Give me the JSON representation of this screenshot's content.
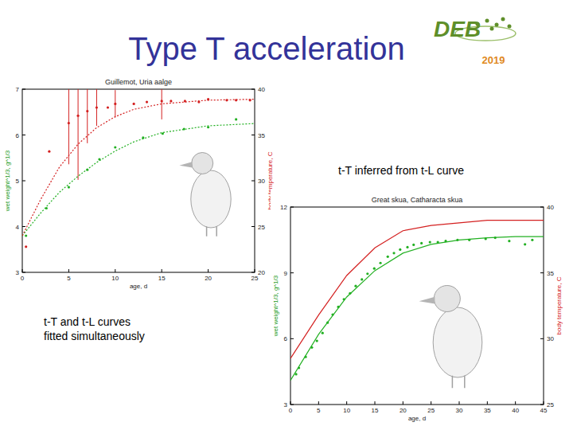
{
  "slide": {
    "title": "Type T acceleration",
    "logo": "DEB",
    "year": "2019",
    "annotations": [
      {
        "lines": [
          "t-T inferred from  t-L curve"
        ]
      },
      {
        "lines": [
          "t-T and t-L curves",
          "fitted simultaneously"
        ]
      }
    ]
  },
  "chart_data": [
    {
      "type": "line",
      "title": "Guillemot, Uria aalge",
      "x_label": "age, d",
      "y_label": "wet weight^1/3, g^1/3",
      "y2_label": "body temperature, C",
      "xlim": [
        0,
        25
      ],
      "xticks": [
        0,
        5,
        10,
        15,
        20,
        25
      ],
      "ylim": [
        3,
        7
      ],
      "yticks": [
        3,
        4,
        5,
        6,
        7
      ],
      "y2lim": [
        20,
        40
      ],
      "y2ticks": [
        20,
        25,
        30,
        35,
        40
      ],
      "series": [
        {
          "type": "scatter",
          "color": "#22b022",
          "marker": "dot",
          "x": [
            0.4,
            2.6,
            5,
            7,
            8.3,
            10,
            13,
            15.1,
            17.4,
            20,
            23
          ],
          "values": [
            3.8,
            4.4,
            4.86,
            5.24,
            5.47,
            5.73,
            5.94,
            6.03,
            6.13,
            6.17,
            6.34
          ]
        },
        {
          "type": "scatter",
          "color": "#d42020",
          "marker": "dot",
          "axis": "y2",
          "x": [
            0.4,
            2.9,
            5,
            6,
            7,
            8,
            9.2,
            10,
            12,
            13.4,
            15,
            16,
            17.5,
            19,
            20,
            22,
            23,
            24.5
          ],
          "values": [
            22.8,
            33.2,
            36.3,
            37.1,
            37.6,
            38,
            38,
            38.4,
            38.4,
            38.6,
            38.7,
            38.7,
            38.7,
            38.6,
            38.9,
            38.8,
            38.8,
            38.8
          ],
          "errors": [
            null,
            null,
            4.5,
            7,
            3.5,
            2,
            null,
            1.5,
            null,
            null,
            2,
            null,
            null,
            null,
            null,
            null,
            null,
            null
          ]
        },
        {
          "type": "line",
          "color": "#22b022",
          "line_style": "dotted",
          "x": [
            0,
            2,
            4,
            6,
            8,
            10,
            12,
            15,
            20,
            25
          ],
          "values": [
            3.8,
            4.3,
            4.75,
            5.1,
            5.4,
            5.65,
            5.85,
            6.05,
            6.2,
            6.25
          ]
        },
        {
          "type": "line",
          "color": "#d42020",
          "line_style": "dotted",
          "axis": "y2",
          "x": [
            0,
            2,
            4,
            6,
            8,
            10,
            12,
            15,
            20,
            25
          ],
          "values": [
            24,
            28,
            31.5,
            34,
            35.8,
            37,
            37.8,
            38.4,
            38.8,
            38.9
          ]
        }
      ]
    },
    {
      "type": "line",
      "title": "Great skua, Catharacta skua",
      "x_label": "age, d",
      "y_label": "wet weight^1/3, g^1/3",
      "y2_label": "body temperature, C",
      "xlim": [
        0,
        45
      ],
      "xticks": [
        0,
        5,
        10,
        15,
        20,
        25,
        30,
        35,
        40,
        45
      ],
      "ylim": [
        3,
        12
      ],
      "yticks": [
        3,
        6,
        9,
        12
      ],
      "y2lim": [
        25,
        40
      ],
      "y2ticks": [
        25,
        30,
        35,
        40
      ],
      "series": [
        {
          "type": "scatter",
          "color": "#22b022",
          "marker": "dot",
          "x": [
            1,
            1.5,
            2.7,
            3.8,
            4.7,
            5.7,
            6.6,
            7.5,
            8.5,
            9.5,
            10.6,
            11.6,
            12.7,
            13.7,
            14.9,
            16,
            17.3,
            18.4,
            19.5,
            20.8,
            21.9,
            23.3,
            24.8,
            26.2,
            27.6,
            29.7,
            31.8,
            34.7,
            36.4,
            38.9,
            41.7,
            43
          ],
          "values": [
            4.38,
            4.67,
            5.17,
            5.6,
            5.9,
            6.26,
            6.73,
            7.1,
            7.45,
            7.8,
            8.07,
            8.4,
            8.7,
            8.96,
            9.2,
            9.45,
            9.74,
            9.9,
            10.06,
            10.17,
            10.28,
            10.35,
            10.4,
            10.4,
            10.45,
            10.5,
            10.5,
            10.55,
            10.6,
            10.45,
            10.3,
            10.5
          ]
        },
        {
          "type": "line",
          "color": "#22b022",
          "line_style": "solid",
          "x": [
            0,
            5,
            10,
            15,
            20,
            25,
            30,
            35,
            40,
            45
          ],
          "values": [
            4.1,
            6.2,
            7.9,
            9.1,
            9.9,
            10.3,
            10.5,
            10.6,
            10.65,
            10.65
          ]
        },
        {
          "type": "line",
          "color": "#d42020",
          "line_style": "solid",
          "axis": "y2",
          "x": [
            0,
            5,
            10,
            15,
            20,
            25,
            30,
            35,
            40,
            45
          ],
          "values": [
            28.5,
            31.8,
            34.8,
            36.9,
            38.2,
            38.6,
            38.8,
            39,
            39,
            39
          ]
        }
      ]
    }
  ]
}
